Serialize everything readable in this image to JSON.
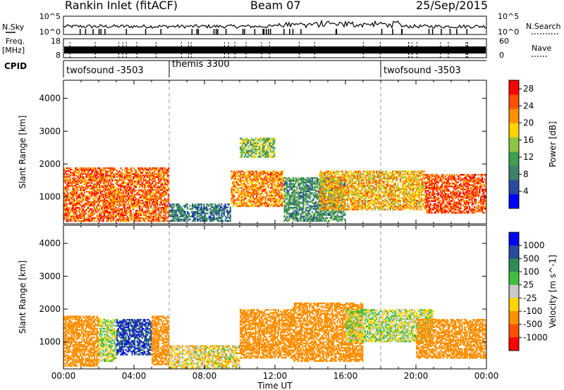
{
  "header": {
    "station": "Rankin Inlet (fitACF)",
    "beam": "Beam 07",
    "date": "25/Sep/2015"
  },
  "top_panels": {
    "nsky_label": "N.Sky",
    "nsearch_label": "N.Search",
    "freq_label_1": "Freq.",
    "freq_label_2": "[MHz]",
    "nave_label": "Nave",
    "cpid_label": "CPID",
    "nsky_left_ticks": [
      "10^5",
      "10^0"
    ],
    "nsky_right_ticks": [
      "10^5",
      "10^0"
    ],
    "freq_left_ticks": [
      "18",
      "8"
    ],
    "nave_right_ticks": [
      "60",
      "0"
    ],
    "cpid_segments": [
      {
        "name": "twofsound -3503",
        "start_hour": 0,
        "end_hour": 6
      },
      {
        "name": "themis 3300",
        "start_hour": 6,
        "end_hour": 18
      },
      {
        "name": "twofsound -3503",
        "start_hour": 18,
        "end_hour": 24
      }
    ]
  },
  "colors": {
    "power": [
      "#0000ff",
      "#2a4a9a",
      "#3f7f6f",
      "#3f9f4f",
      "#8cc63f",
      "#ffd400",
      "#ff9000",
      "#ff5000",
      "#ff0000"
    ],
    "velocity": [
      "#0000ff",
      "#2a4a9a",
      "#2e8b57",
      "#3fbf3f",
      "#c8c8c8",
      "#ffd400",
      "#ff9000",
      "#ff5000",
      "#ff0000"
    ]
  },
  "chart_data": [
    {
      "type": "heatmap",
      "title": "Power",
      "xlabel": "Time UT",
      "ylabel": "Slant Range [km]",
      "xlim": [
        0,
        24
      ],
      "ylim": [
        180,
        4550
      ],
      "x_tick_labels": [
        "00:00",
        "04:00",
        "08:00",
        "12:00",
        "16:00",
        "20:00",
        "00:00"
      ],
      "y_tick_labels": [
        "1000",
        "2000",
        "3000",
        "4000"
      ],
      "colorbar": {
        "label": "Power [dB]",
        "ticks": [
          "4",
          "8",
          "12",
          "16",
          "20",
          "24",
          "28"
        ],
        "range": [
          0,
          30
        ]
      },
      "regions": [
        {
          "t": [
            0,
            6
          ],
          "r": [
            250,
            1900
          ],
          "level": 24
        },
        {
          "t": [
            6,
            9.5
          ],
          "r": [
            250,
            800
          ],
          "level": 8
        },
        {
          "t": [
            9.5,
            12.5
          ],
          "r": [
            700,
            1800
          ],
          "level": 22
        },
        {
          "t": [
            10,
            12
          ],
          "r": [
            2200,
            2800
          ],
          "level": 14
        },
        {
          "t": [
            12.5,
            16
          ],
          "r": [
            250,
            1600
          ],
          "level": 10
        },
        {
          "t": [
            14.5,
            20.5
          ],
          "r": [
            600,
            1800
          ],
          "level": 20
        },
        {
          "t": [
            20.5,
            24
          ],
          "r": [
            500,
            1700
          ],
          "level": 25
        }
      ]
    },
    {
      "type": "heatmap",
      "title": "Velocity",
      "xlabel": "Time UT",
      "ylabel": "Slant Range [km]",
      "xlim": [
        0,
        24
      ],
      "ylim": [
        180,
        4550
      ],
      "x_tick_labels": [
        "00:00",
        "04:00",
        "08:00",
        "12:00",
        "16:00",
        "20:00",
        "00:00"
      ],
      "y_tick_labels": [
        "1000",
        "2000",
        "3000",
        "4000"
      ],
      "colorbar": {
        "label": "Velocity [m s^-1]",
        "ticks": [
          "1000",
          "500",
          "100",
          "25",
          "-25",
          "-100",
          "-500",
          "-1000"
        ]
      },
      "regions": [
        {
          "t": [
            0,
            2
          ],
          "r": [
            250,
            1800
          ],
          "level": -200
        },
        {
          "t": [
            2,
            3
          ],
          "r": [
            400,
            1700
          ],
          "level": 0
        },
        {
          "t": [
            3,
            5
          ],
          "r": [
            600,
            1700
          ],
          "level": 800
        },
        {
          "t": [
            5,
            6
          ],
          "r": [
            300,
            1800
          ],
          "level": -300
        },
        {
          "t": [
            6,
            10
          ],
          "r": [
            200,
            900
          ],
          "level": -50
        },
        {
          "t": [
            10,
            13
          ],
          "r": [
            500,
            2000
          ],
          "level": -300
        },
        {
          "t": [
            13,
            17
          ],
          "r": [
            400,
            2200
          ],
          "level": -200
        },
        {
          "t": [
            16,
            21
          ],
          "r": [
            1000,
            2000
          ],
          "level": 0
        },
        {
          "t": [
            20,
            24
          ],
          "r": [
            500,
            1700
          ],
          "level": -300
        }
      ]
    }
  ]
}
